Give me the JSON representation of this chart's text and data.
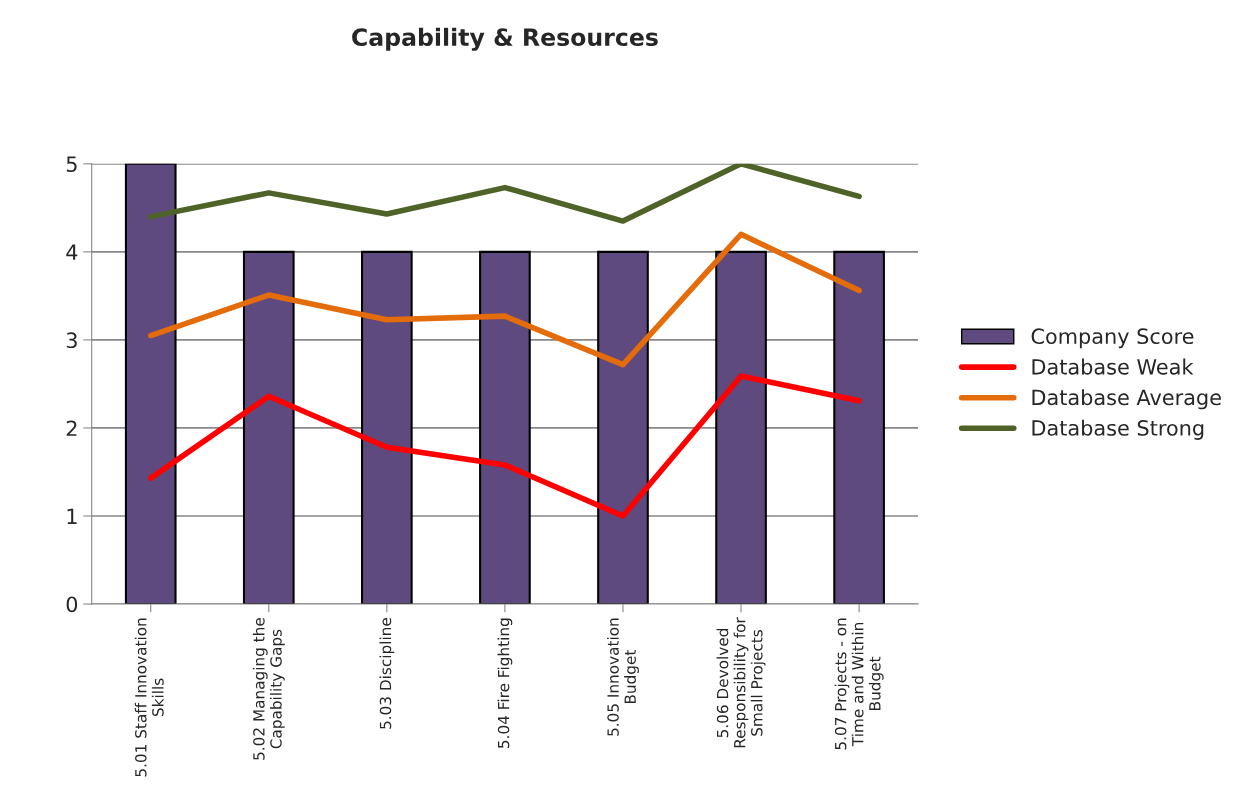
{
  "chart_data": {
    "type": "bar",
    "title": "Capability & Resources",
    "categories": [
      "5.01 Staff Innovation\nSkills",
      "5.02 Managing the\nCapability Gaps",
      "5.03 Discipline",
      "5.04 Fire Fighting",
      "5.05 Innovation\nBudget",
      "5.06 Devolved\nResponsibility for\nSmall Projects",
      "5.07 Projects - on\nTime and Within\nBudget"
    ],
    "series": [
      {
        "name": "Company Score",
        "color": "#5e4a7e",
        "values": [
          5,
          4,
          4,
          4,
          4,
          4,
          4
        ]
      },
      {
        "name": "Database Weak",
        "type": "line",
        "color": "#ff0000",
        "values": [
          1.43,
          2.36,
          1.78,
          1.58,
          1.0,
          2.59,
          2.31
        ]
      },
      {
        "name": "Database Average",
        "type": "line",
        "color": "#e46c0a",
        "values": [
          3.05,
          3.51,
          3.23,
          3.27,
          2.72,
          4.2,
          3.56
        ]
      },
      {
        "name": "Database Strong",
        "type": "line",
        "color": "#4f6228",
        "values": [
          4.4,
          4.67,
          4.43,
          4.73,
          4.35,
          5.0,
          4.63
        ]
      }
    ],
    "ylim": [
      0,
      5
    ],
    "yticks": [
      0,
      1,
      2,
      3,
      4,
      5
    ],
    "grid": "y",
    "legend": "right",
    "marker": "none",
    "line_style": "solid"
  }
}
